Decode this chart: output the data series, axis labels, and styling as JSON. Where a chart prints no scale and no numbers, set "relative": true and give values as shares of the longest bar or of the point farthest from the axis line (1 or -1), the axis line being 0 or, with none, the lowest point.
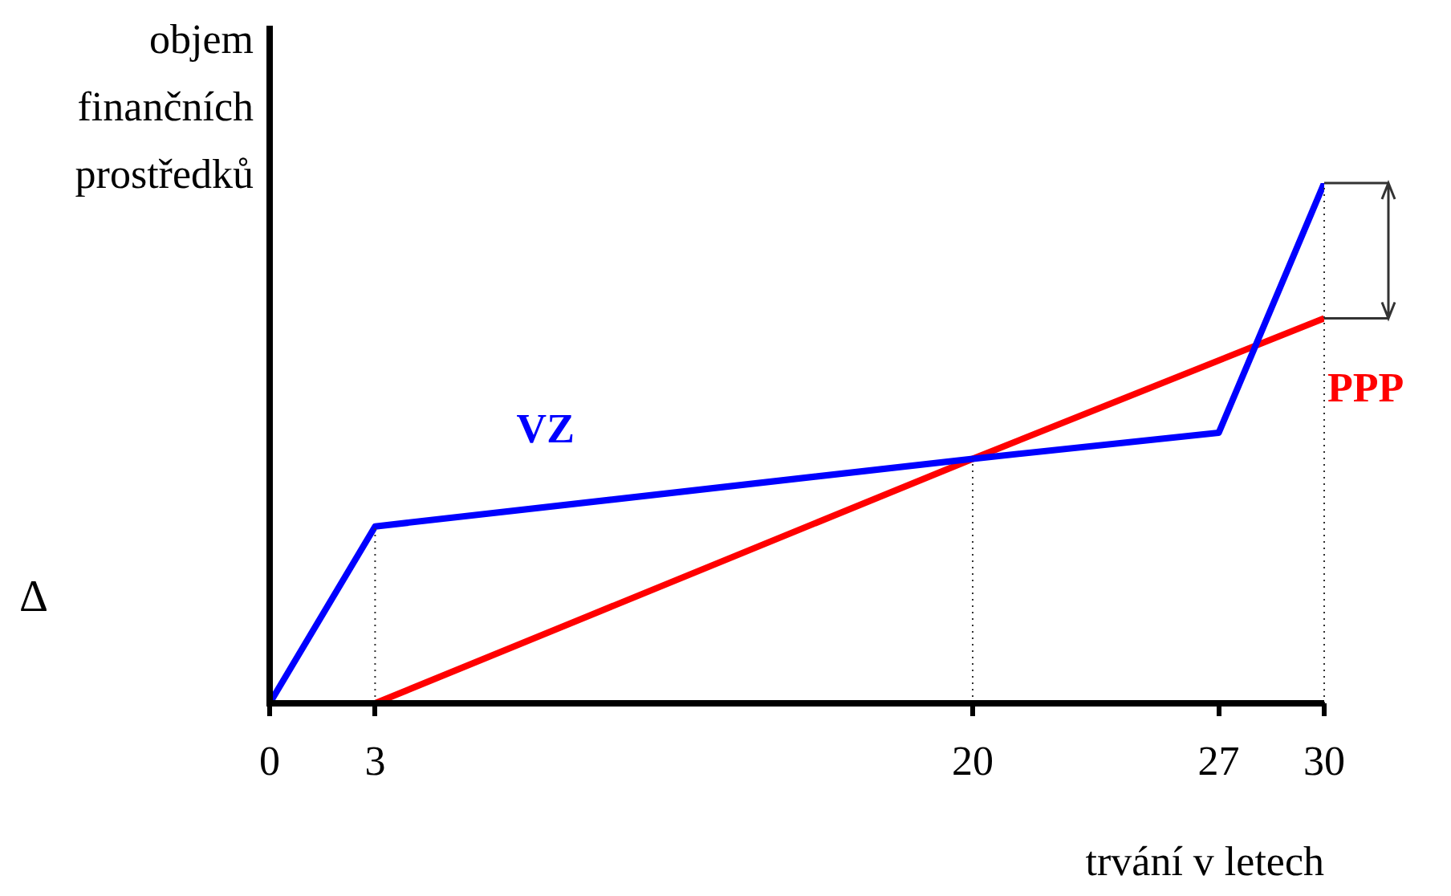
{
  "chart_data": {
    "type": "line",
    "relative": true,
    "ylabel": "objem finančních prostředků",
    "xlabel": "trvání v letech",
    "xlim": [
      0,
      30
    ],
    "xticks": [
      0,
      3,
      20,
      27,
      30
    ],
    "series": [
      {
        "name": "VZ",
        "color": "#0000ff",
        "x": [
          0,
          3,
          20,
          27,
          30
        ],
        "values": [
          0,
          0.34,
          0.47,
          0.52,
          1
        ]
      },
      {
        "name": "PPP",
        "color": "#ff0000",
        "x": [
          3,
          20,
          30
        ],
        "values": [
          0,
          0.47,
          0.74
        ]
      }
    ],
    "ref_lines": [
      {
        "axis": "x",
        "value": 3,
        "line_style": "dotted"
      },
      {
        "axis": "x",
        "value": 20,
        "line_style": "dotted"
      },
      {
        "axis": "x",
        "value": 30,
        "line_style": "dotted"
      }
    ],
    "annotations": [
      "Δ"
    ],
    "grid": false,
    "legend": false,
    "marker": "none",
    "line_style": "solid"
  }
}
